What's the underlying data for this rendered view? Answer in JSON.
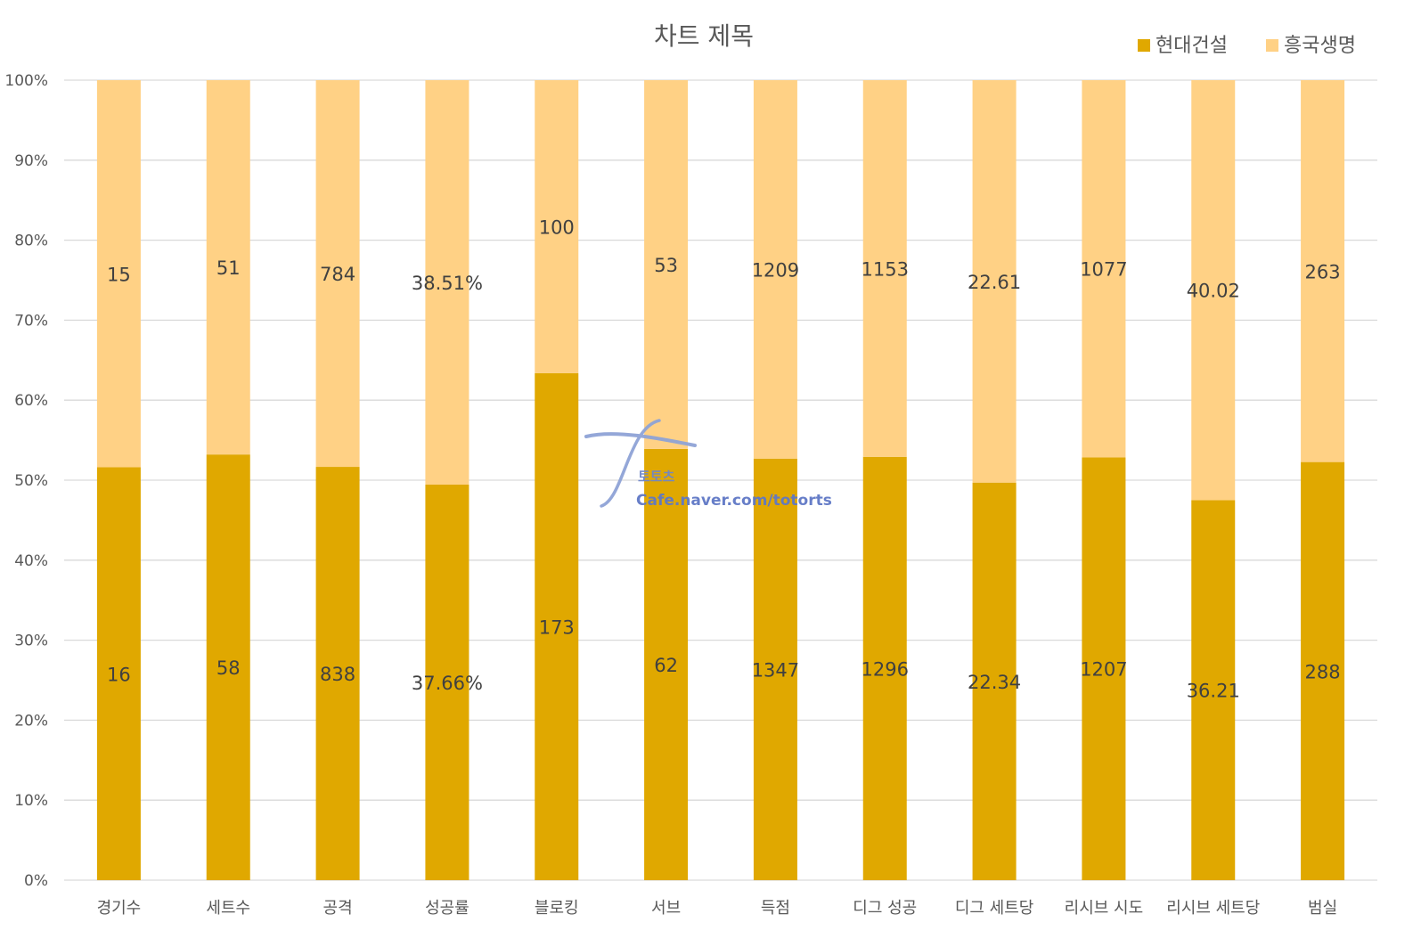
{
  "chart_data": {
    "type": "bar",
    "stacked": "percent",
    "title": "차트 제목",
    "xlabel": "",
    "ylabel": "",
    "ylim": [
      0,
      100
    ],
    "yticks": [
      "0%",
      "10%",
      "20%",
      "30%",
      "40%",
      "50%",
      "60%",
      "70%",
      "80%",
      "90%",
      "100%"
    ],
    "grid": true,
    "legend_position": "top-right",
    "categories": [
      "경기수",
      "세트수",
      "공격",
      "성공률",
      "블로킹",
      "서브",
      "득점",
      "디그 성공",
      "디그 세트당",
      "리시브 시도",
      "리시브 세트당",
      "범실"
    ],
    "series": [
      {
        "name": "현대건설",
        "color": "#E0A800",
        "values": [
          16,
          58,
          838,
          37.66,
          173,
          62,
          1347,
          1296,
          22.34,
          1207,
          36.21,
          288
        ],
        "labels": [
          "16",
          "58",
          "838",
          "37.66%",
          "173",
          "62",
          "1347",
          "1296",
          "22.34",
          "1207",
          "36.21",
          "288"
        ]
      },
      {
        "name": "흥국생명",
        "color": "#FFD185",
        "values": [
          15,
          51,
          784,
          38.51,
          100,
          53,
          1209,
          1153,
          22.61,
          1077,
          40.02,
          263
        ],
        "labels": [
          "15",
          "51",
          "784",
          "38.51%",
          "100",
          "53",
          "1209",
          "1153",
          "22.61",
          "1077",
          "40.02",
          "263"
        ]
      }
    ]
  },
  "watermark": {
    "line1": "토토츠",
    "line2": "Cafe.naver.com/totorts"
  }
}
